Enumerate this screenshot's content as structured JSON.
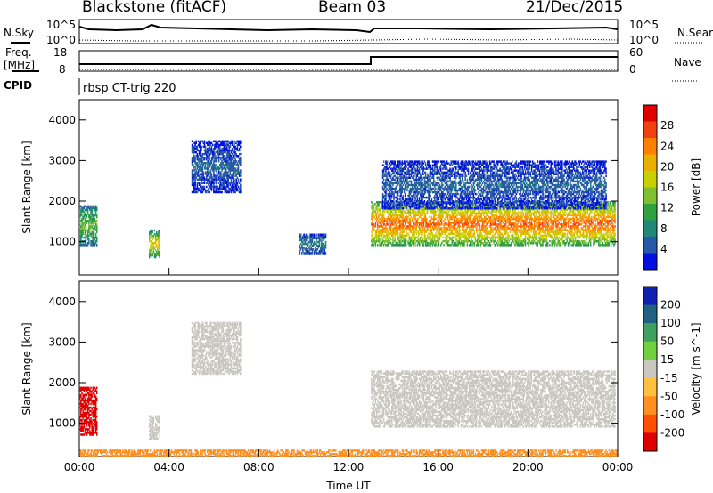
{
  "header": {
    "title": "Blackstone (fitACF)",
    "beam": "Beam 03",
    "date": "21/Dec/2015"
  },
  "panels": {
    "nsky_label": "N.Sky",
    "nsearch_label": "N.Search",
    "freq_label_top": "Freq.",
    "freq_label_unit": "[MHz]",
    "nave_label": "Nave",
    "cpid_label": "CPID",
    "cpid_text": "rbsp CT-trig 220",
    "nsky_ticks": [
      "10^5",
      "10^0"
    ],
    "freq_ticks": [
      "18",
      "8"
    ],
    "nave_ticks": [
      "60",
      "0"
    ]
  },
  "chart_data": [
    {
      "type": "heatmap",
      "title": "",
      "xlabel": "Time UT",
      "ylabel": "Slant Range [km]",
      "colorbar_label": "Power [dB]",
      "colorbar_ticks": [
        "28",
        "24",
        "20",
        "16",
        "12",
        "8",
        "4"
      ],
      "colorbar_colors": [
        "#e00000",
        "#f04010",
        "#ff8000",
        "#e8b000",
        "#c8d000",
        "#80c030",
        "#30a040",
        "#208878",
        "#2858a8",
        "#0010e0"
      ],
      "x_ticks": [
        "00:00",
        "04:00",
        "08:00",
        "12:00",
        "16:00",
        "20:00",
        "00:00"
      ],
      "y_ticks": [
        "4000",
        "3000",
        "2000",
        "1000"
      ],
      "xlim_hours": [
        0,
        24
      ],
      "ylim_km": [
        180,
        4500
      ],
      "echo_regions": [
        {
          "t": [
            0.0,
            0.8
          ],
          "range_km": [
            900,
            1900
          ],
          "power_db": 14
        },
        {
          "t": [
            3.1,
            3.6
          ],
          "range_km": [
            600,
            1300
          ],
          "power_db": 20
        },
        {
          "t": [
            5.0,
            7.2
          ],
          "range_km": [
            2200,
            3500
          ],
          "power_db": 6
        },
        {
          "t": [
            9.8,
            11.0
          ],
          "range_km": [
            700,
            1200
          ],
          "power_db": 8
        },
        {
          "t": [
            13.0,
            23.9
          ],
          "range_km": [
            900,
            2000
          ],
          "power_db": 26
        },
        {
          "t": [
            13.5,
            23.5
          ],
          "range_km": [
            1800,
            3000
          ],
          "power_db": 6
        }
      ]
    },
    {
      "type": "heatmap",
      "title": "",
      "xlabel": "Time UT",
      "ylabel": "Slant Range [km]",
      "colorbar_label": "Velocity [m s^-1]",
      "colorbar_ticks": [
        "200",
        "100",
        "50",
        "15",
        "-15",
        "-50",
        "-100",
        "-200"
      ],
      "colorbar_colors": [
        "#1020b0",
        "#206080",
        "#40a060",
        "#70d040",
        "#c8c8c0",
        "#ffc040",
        "#ff9020",
        "#ff5000",
        "#e00000"
      ],
      "x_ticks": [
        "00:00",
        "04:00",
        "08:00",
        "12:00",
        "16:00",
        "20:00",
        "00:00"
      ],
      "y_ticks": [
        "4000",
        "3000",
        "2000",
        "1000"
      ],
      "xlim_hours": [
        0,
        24
      ],
      "ylim_km": [
        180,
        4500
      ],
      "echo_regions": [
        {
          "t": [
            0.0,
            0.8
          ],
          "range_km": [
            700,
            1900
          ],
          "velocity": -200
        },
        {
          "t": [
            3.1,
            3.6
          ],
          "range_km": [
            600,
            1200
          ],
          "velocity": 0
        },
        {
          "t": [
            5.0,
            7.2
          ],
          "range_km": [
            2200,
            3500
          ],
          "velocity": 0
        },
        {
          "t": [
            13.0,
            23.9
          ],
          "range_km": [
            900,
            2300
          ],
          "velocity": 0
        },
        {
          "t": [
            0.0,
            24.0
          ],
          "range_km": [
            180,
            350
          ],
          "velocity": -50
        }
      ]
    }
  ]
}
